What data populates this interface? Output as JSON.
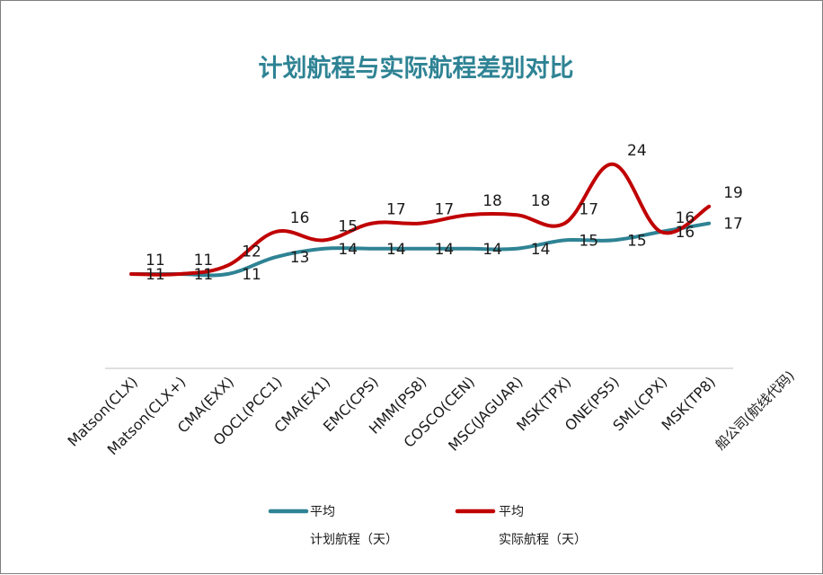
{
  "chart_data": {
    "type": "line",
    "title": "计划航程与实际航程差别对比",
    "xlabel": "船公司(航线代码)",
    "ylabel": "",
    "ylim": [
      0,
      30
    ],
    "grid": false,
    "legend_position": "bottom",
    "categories": [
      "Matson(CLX)",
      "Matson(CLX+)",
      "CMA(EXX)",
      "OOCL(PCC1)",
      "CMA(EX1)",
      "EMC(CPS)",
      "HMM(PS8)",
      "COSCO(CEN)",
      "MSC(JAGUAR)",
      "MSK(TPX)",
      "ONE(PS5)",
      "SML(CPX)",
      "MSK(TP8)"
    ],
    "series": [
      {
        "name_line1": "平均",
        "name_line2": "计划航程（天）",
        "color": "#2e8394",
        "values": [
          11,
          11,
          11,
          13,
          14,
          14,
          14,
          14,
          14,
          15,
          15,
          16,
          17
        ],
        "labels": [
          "11",
          "11",
          "11",
          "13",
          "14",
          "14",
          "14",
          "14",
          "14",
          "15",
          "15",
          "16",
          "17"
        ]
      },
      {
        "name_line1": "平均",
        "name_line2": "实际航程（天）",
        "color": "#c00000",
        "values": [
          11,
          11,
          12,
          16,
          15,
          17,
          17,
          18,
          18,
          17,
          24,
          16,
          19
        ],
        "labels": [
          "11",
          "11",
          "12",
          "16",
          "15",
          "17",
          "17",
          "18",
          "18",
          "17",
          "24",
          "16",
          "19"
        ]
      }
    ]
  }
}
